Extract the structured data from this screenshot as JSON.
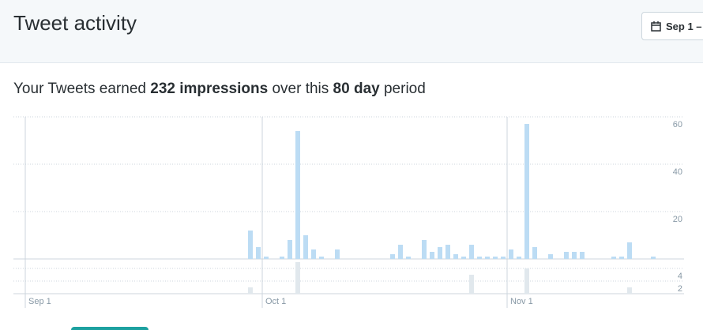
{
  "header": {
    "title": "Tweet activity",
    "date_button": "Sep 1 –"
  },
  "summary": {
    "prefix": "Your Tweets earned",
    "impressions": "232 impressions",
    "middle": "over this",
    "days": "80 day",
    "suffix": "period"
  },
  "chart_data": [
    {
      "type": "bar",
      "color": "#bcdcf4",
      "ylim": [
        0,
        60
      ],
      "yticks": [
        20,
        40,
        60
      ],
      "grid": true,
      "categories": [
        "Sep 1",
        null,
        null,
        null,
        null,
        null,
        null,
        null,
        null,
        null,
        null,
        null,
        null,
        null,
        null,
        null,
        null,
        null,
        null,
        null,
        null,
        null,
        null,
        null,
        null,
        null,
        null,
        null,
        null,
        null,
        "Oct 1",
        null,
        null,
        null,
        null,
        null,
        null,
        null,
        null,
        null,
        null,
        null,
        null,
        null,
        null,
        null,
        null,
        null,
        null,
        null,
        null,
        null,
        null,
        null,
        null,
        null,
        null,
        null,
        null,
        null,
        null,
        "Nov 1",
        null,
        null,
        null,
        null,
        null,
        null,
        null,
        null,
        null,
        null,
        null,
        null,
        null,
        null,
        null,
        null,
        null,
        null
      ],
      "values": [
        0,
        0,
        0,
        0,
        0,
        0,
        0,
        0,
        0,
        0,
        0,
        0,
        0,
        0,
        0,
        0,
        0,
        0,
        0,
        0,
        0,
        0,
        0,
        0,
        0,
        0,
        0,
        0,
        12,
        5,
        1,
        0,
        1,
        8,
        54,
        10,
        4,
        1,
        0,
        4,
        0,
        0,
        0,
        0,
        0,
        0,
        2,
        6,
        1,
        0,
        8,
        3,
        5,
        6,
        2,
        1,
        6,
        1,
        1,
        1,
        1,
        4,
        1,
        57,
        5,
        0,
        2,
        0,
        3,
        3,
        3,
        0,
        0,
        0,
        1,
        1,
        7,
        0,
        0,
        1
      ]
    },
    {
      "type": "bar",
      "color": "#e1e8ed",
      "ylim": [
        0,
        5
      ],
      "yticks": [
        2,
        4
      ],
      "grid": true,
      "values": [
        0,
        0,
        0,
        0,
        0,
        0,
        0,
        0,
        0,
        0,
        0,
        0,
        0,
        0,
        0,
        0,
        0,
        0,
        0,
        0,
        0,
        0,
        0,
        0,
        0,
        0,
        0,
        0,
        1,
        0,
        0,
        0,
        0,
        0,
        5,
        0,
        0,
        0,
        0,
        0,
        0,
        0,
        0,
        0,
        0,
        0,
        0,
        0,
        0,
        0,
        0,
        0,
        0,
        0,
        0,
        0,
        3,
        0,
        0,
        0,
        0,
        0,
        0,
        4,
        0,
        0,
        0,
        0,
        0,
        0,
        0,
        0,
        0,
        0,
        0,
        0,
        1,
        0,
        0,
        0
      ]
    }
  ]
}
